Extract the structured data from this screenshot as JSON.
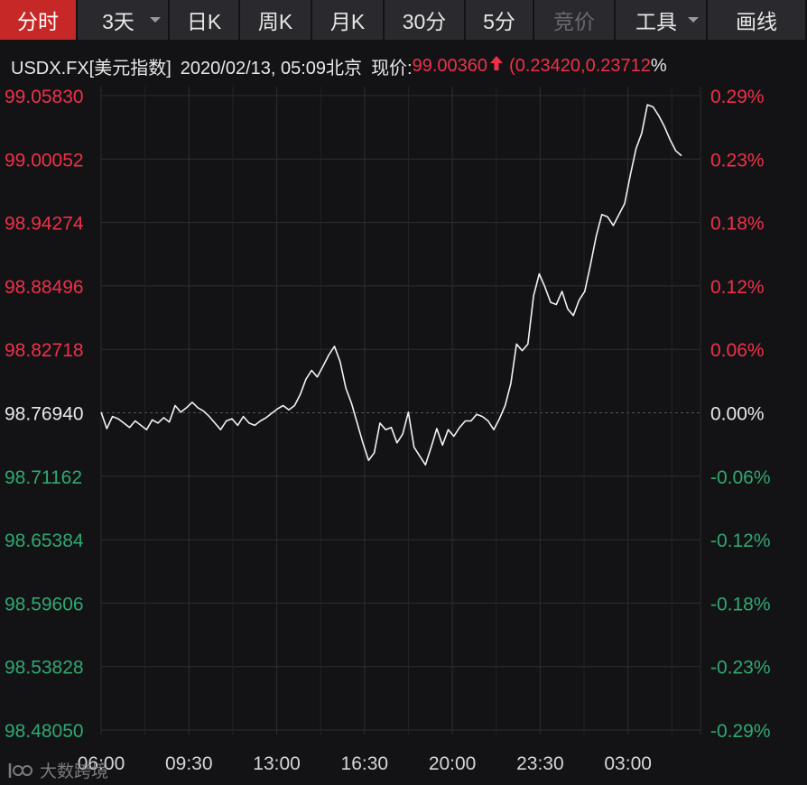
{
  "tabs": [
    {
      "label": "分时",
      "active": true,
      "dropdown": false,
      "disabled": false
    },
    {
      "label": "3天",
      "active": false,
      "dropdown": true,
      "disabled": false
    },
    {
      "label": "日K",
      "active": false,
      "dropdown": false,
      "disabled": false
    },
    {
      "label": "周K",
      "active": false,
      "dropdown": false,
      "disabled": false
    },
    {
      "label": "月K",
      "active": false,
      "dropdown": false,
      "disabled": false
    },
    {
      "label": "30分",
      "active": false,
      "dropdown": false,
      "disabled": false
    },
    {
      "label": "5分",
      "active": false,
      "dropdown": false,
      "disabled": false
    },
    {
      "label": "竞价",
      "active": false,
      "dropdown": false,
      "disabled": true
    },
    {
      "label": "工具",
      "active": false,
      "dropdown": true,
      "disabled": false
    },
    {
      "label": "画线",
      "active": false,
      "dropdown": false,
      "disabled": false
    }
  ],
  "info": {
    "symbol": "USDX.FX[美元指数]",
    "datetime": "2020/02/13, 05:09北京",
    "price_label": "现价:",
    "price": "99.00360",
    "change_open": "(",
    "change": "0.23420",
    "separator": ",",
    "change_pct": "0.23712",
    "pct_sign": "%"
  },
  "colors": {
    "up": "#f0304a",
    "down": "#2fa872",
    "neutral": "#e8e8e8",
    "line": "#f2f2f2",
    "grid": "#2e2e32"
  },
  "watermark": {
    "text": "大数跨境",
    "icon": "dashuju-logo-icon"
  },
  "chart_data": {
    "type": "line",
    "baseline": 98.7694,
    "ylim": [
      98.4805,
      99.0583
    ],
    "y_ticks_left": [
      "99.05830",
      "99.00052",
      "98.94274",
      "98.88496",
      "98.82718",
      "98.76940",
      "98.71162",
      "98.65384",
      "98.59606",
      "98.53828",
      "98.48050"
    ],
    "y_ticks_right": [
      "0.29%",
      "0.23%",
      "0.18%",
      "0.12%",
      "0.06%",
      "0.00%",
      "-0.06%",
      "-0.12%",
      "-0.18%",
      "-0.23%",
      "-0.29%"
    ],
    "x_ticks": [
      "06:00",
      "09:30",
      "13:00",
      "16:30",
      "20:00",
      "23:30",
      "03:00"
    ],
    "grid": true,
    "series": [
      {
        "values": [
          98.77,
          98.755,
          98.766,
          98.764,
          98.76,
          98.756,
          98.762,
          98.758,
          98.754,
          98.763,
          98.76,
          98.765,
          98.761,
          98.776,
          98.77,
          98.774,
          98.779,
          98.774,
          98.771,
          98.766,
          98.76,
          98.754,
          98.762,
          98.764,
          98.758,
          98.766,
          98.76,
          98.758,
          98.762,
          98.765,
          98.769,
          98.773,
          98.776,
          98.772,
          98.776,
          98.786,
          98.8,
          98.808,
          98.802,
          98.812,
          98.822,
          98.83,
          98.816,
          98.792,
          98.778,
          98.76,
          98.742,
          98.726,
          98.733,
          98.76,
          98.754,
          98.756,
          98.742,
          98.75,
          98.77,
          98.738,
          98.73,
          98.722,
          98.738,
          98.755,
          98.74,
          98.754,
          98.748,
          98.756,
          98.762,
          98.762,
          98.768,
          98.766,
          98.762,
          98.754,
          98.764,
          98.776,
          98.796,
          98.832,
          98.826,
          98.832,
          98.876,
          98.896,
          98.884,
          98.87,
          98.868,
          98.88,
          98.864,
          98.858,
          98.872,
          98.88,
          98.904,
          98.93,
          98.95,
          98.948,
          98.94,
          98.95,
          98.96,
          98.986,
          99.01,
          99.024,
          99.05,
          99.048,
          99.04,
          99.03,
          99.018,
          99.008,
          99.0036
        ]
      }
    ]
  }
}
